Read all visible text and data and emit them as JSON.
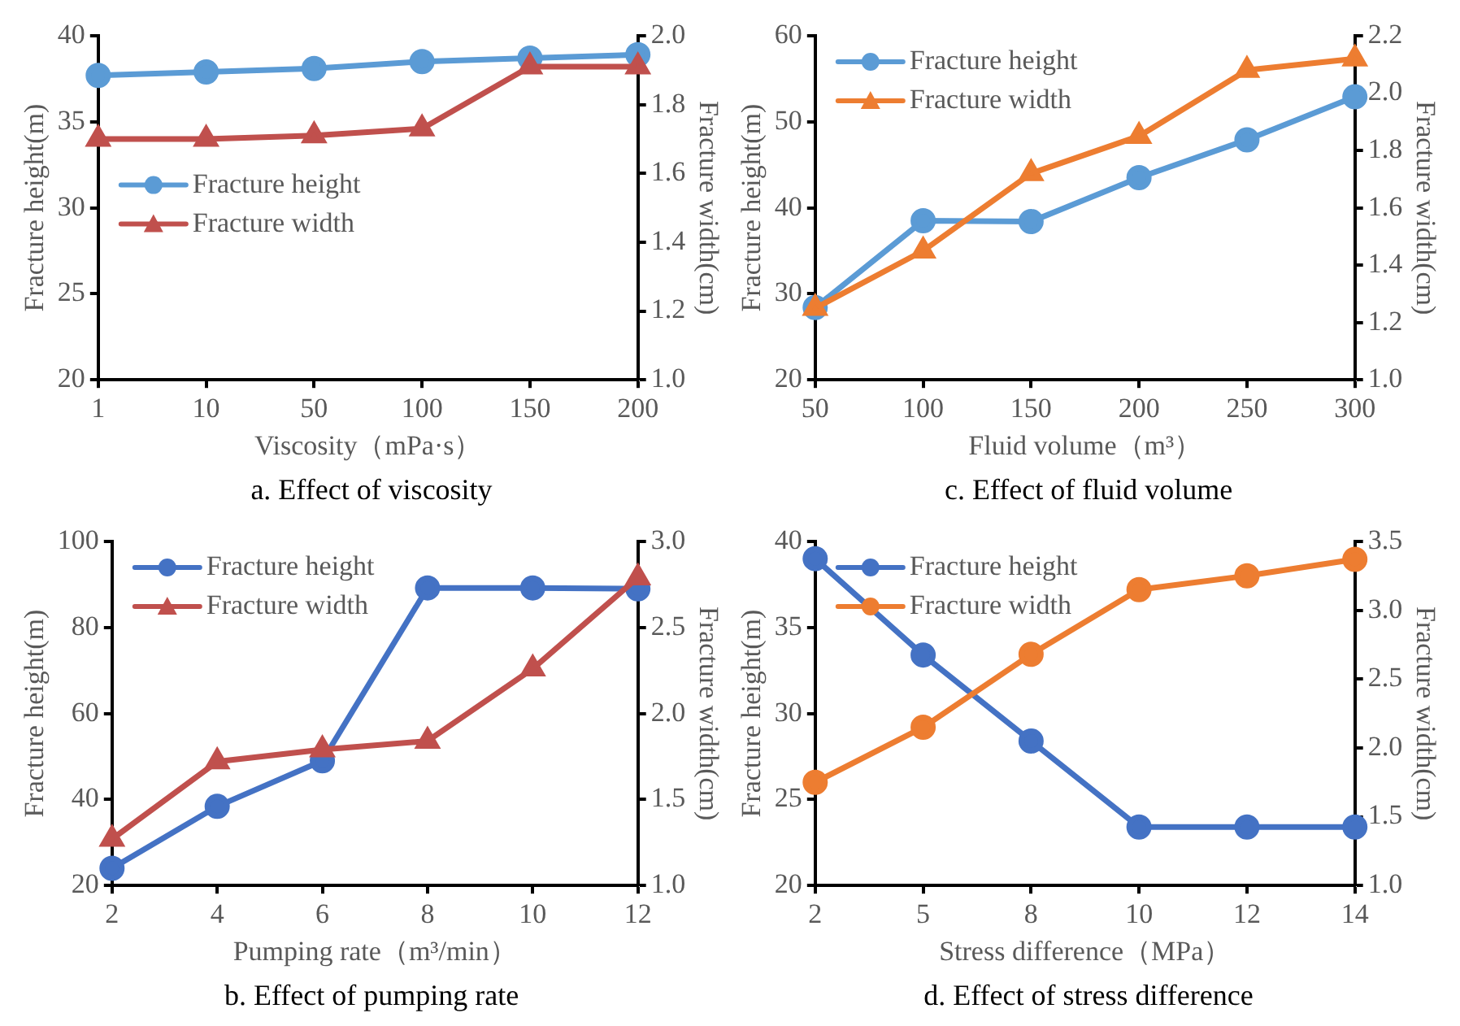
{
  "chart_data": [
    {
      "type": "line",
      "title": "a. Effect of viscosity",
      "xlabel": "Viscosity（mPa·s）",
      "ylabel": "Fracture height(m)",
      "y2label": "Fracture width(cm)",
      "categories": [
        "1",
        "10",
        "50",
        "100",
        "150",
        "200"
      ],
      "ylim": [
        20,
        40
      ],
      "yticks": [
        20,
        25,
        30,
        35,
        40
      ],
      "y2lim": [
        1.0,
        2.0
      ],
      "y2ticks": [
        {
          "value": 1.0,
          "label": "1.0"
        },
        {
          "value": 1.2,
          "label": "1.2"
        },
        {
          "value": 1.4,
          "label": "1.4"
        },
        {
          "value": 1.6,
          "label": "1.6"
        },
        {
          "value": 1.8,
          "label": "1.8"
        },
        {
          "value": 2.0,
          "label": "2.0"
        }
      ],
      "legend": "left",
      "grid": false,
      "series": [
        {
          "name": "Fracture height",
          "color": "#5b9bd5",
          "marker": "circle",
          "values": [
            37.7,
            37.9,
            38.1,
            38.5,
            38.7,
            38.9
          ]
        },
        {
          "name": "Fracture width",
          "color": "#c0504d",
          "marker": "triangle",
          "axis": "y2",
          "values": [
            1.7,
            1.7,
            1.71,
            1.73,
            1.91,
            1.91
          ]
        }
      ]
    },
    {
      "type": "line",
      "title": "c. Effect of fluid volume",
      "xlabel": "Fluid volume（m³）",
      "ylabel": "Fracture height(m)",
      "y2label": "Fracture width(cm)",
      "categories": [
        "50",
        "100",
        "150",
        "200",
        "250",
        "300"
      ],
      "ylim": [
        20,
        60
      ],
      "yticks": [
        20,
        30,
        40,
        50,
        60
      ],
      "y2lim": [
        1.0,
        2.2
      ],
      "y2ticks": [
        {
          "value": 1.0,
          "label": "1.0"
        },
        {
          "value": 1.2,
          "label": "1.2"
        },
        {
          "value": 1.4,
          "label": "1.4"
        },
        {
          "value": 1.6,
          "label": "1.6"
        },
        {
          "value": 1.8,
          "label": "1.8"
        },
        {
          "value": 2.0,
          "label": "2.0"
        },
        {
          "value": 2.2,
          "label": "2.2"
        }
      ],
      "legend": "top left",
      "grid": false,
      "series": [
        {
          "name": "Fracture height",
          "color": "#5b9bd5",
          "marker": "circle",
          "values": [
            28.4,
            38.5,
            38.4,
            43.5,
            47.9,
            52.9
          ]
        },
        {
          "name": "Fracture width",
          "color": "#ed7d31",
          "marker": "triangle",
          "axis": "y2",
          "values": [
            1.25,
            1.45,
            1.72,
            1.85,
            2.08,
            2.12
          ]
        }
      ]
    },
    {
      "type": "line",
      "title": "b. Effect of pumping rate",
      "xlabel": "Pumping rate（m³/min）",
      "ylabel": "Fracture height(m)",
      "y2label": "Fracture width(cm)",
      "categories": [
        "2",
        "4",
        "6",
        "8",
        "10",
        "12"
      ],
      "ylim": [
        20,
        100
      ],
      "yticks": [
        20,
        40,
        60,
        80,
        100
      ],
      "y2lim": [
        1.0,
        3.0
      ],
      "y2ticks": [
        {
          "value": 1.0,
          "label": "1.0"
        },
        {
          "value": 1.5,
          "label": "1.5"
        },
        {
          "value": 2.0,
          "label": "2.0"
        },
        {
          "value": 2.5,
          "label": "2.5"
        },
        {
          "value": 3.0,
          "label": "3.0"
        }
      ],
      "legend": "top left",
      "grid": false,
      "series": [
        {
          "name": "Fracture height",
          "color": "#4472c4",
          "marker": "circle",
          "values": [
            24,
            38.4,
            49,
            89.2,
            89.2,
            89
          ]
        },
        {
          "name": "Fracture width",
          "color": "#c0504d",
          "marker": "triangle",
          "axis": "y2",
          "values": [
            1.27,
            1.72,
            1.79,
            1.84,
            2.26,
            2.79
          ]
        }
      ]
    },
    {
      "type": "line",
      "title": "d. Effect of stress difference",
      "xlabel": "Stress difference（MPa）",
      "ylabel": "Fracture height(m)",
      "y2label": "Fracture width(cm)",
      "categories": [
        "2",
        "5",
        "8",
        "10",
        "12",
        "14"
      ],
      "ylim": [
        20,
        40
      ],
      "yticks": [
        20,
        25,
        30,
        35,
        40
      ],
      "y2lim": [
        1.0,
        3.5
      ],
      "y2ticks": [
        {
          "value": 1.0,
          "label": "1.0"
        },
        {
          "value": 1.5,
          "label": "1.5"
        },
        {
          "value": 2.0,
          "label": "2.0"
        },
        {
          "value": 2.5,
          "label": "2.5"
        },
        {
          "value": 3.0,
          "label": "3.0"
        },
        {
          "value": 3.5,
          "label": "3.5"
        }
      ],
      "legend": "top left",
      "grid": false,
      "series": [
        {
          "name": "Fracture height",
          "color": "#4472c4",
          "marker": "circle",
          "values": [
            39.0,
            33.4,
            28.4,
            23.4,
            23.4,
            23.4
          ]
        },
        {
          "name": "Fracture width",
          "color": "#ed7d31",
          "marker": "circle",
          "axis": "y2",
          "values": [
            1.75,
            2.15,
            2.68,
            3.15,
            3.25,
            3.37
          ]
        }
      ]
    }
  ]
}
